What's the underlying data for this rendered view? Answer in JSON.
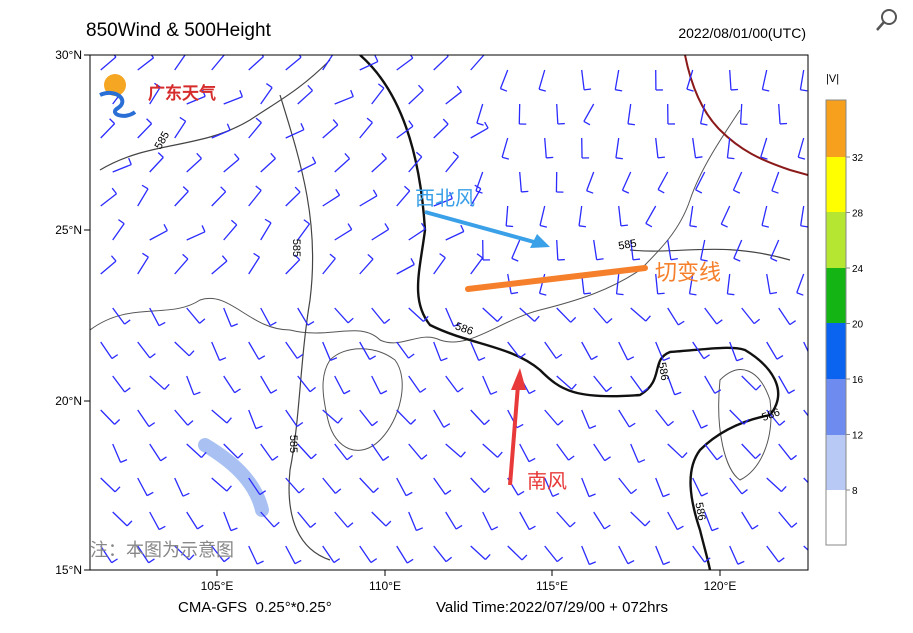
{
  "header": {
    "title": "850Wind & 500Height",
    "time": "2022/08/01/00(UTC)"
  },
  "map": {
    "lat_labels": [
      "30°N",
      "25°N",
      "20°N",
      "15°N"
    ],
    "lon_labels": [
      "105°E",
      "110°E",
      "115°E",
      "120°E"
    ],
    "contour_labels": [
      "585",
      "585",
      "585",
      "585",
      "586",
      "586",
      "586",
      "586"
    ],
    "logo": "广东天气",
    "annotations": {
      "northwest_wind": "西北风",
      "shear_line": "切变线",
      "south_wind": "南风",
      "note": "注：本图为示意图"
    }
  },
  "colorbar": {
    "title": "|V|",
    "ticks": [
      8,
      12,
      16,
      20,
      24,
      28,
      32
    ]
  },
  "footer": {
    "model": "CMA-GFS  0.25°*0.25°",
    "valid": "Valid Time:2022/07/29/00 + 072hrs"
  }
}
